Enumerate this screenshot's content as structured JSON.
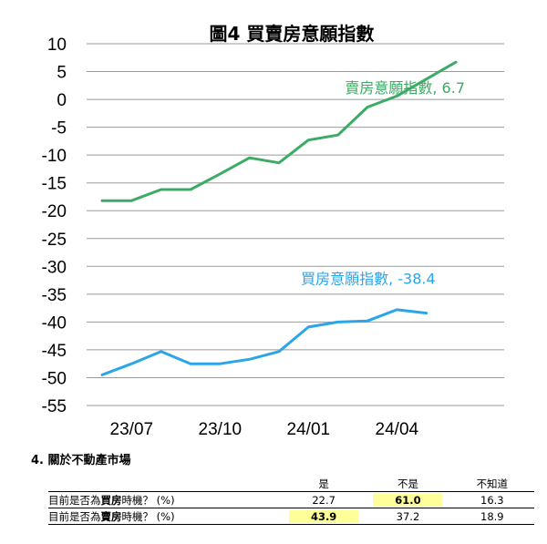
{
  "chart_data": {
    "type": "line",
    "title": "圖4 買賣房意願指數",
    "xlabel": "",
    "ylabel": "",
    "ylim": [
      -55,
      10
    ],
    "yticks": [
      10,
      5,
      0,
      -5,
      -10,
      -15,
      -20,
      -25,
      -30,
      -35,
      -40,
      -45,
      -50,
      -55
    ],
    "grid": true,
    "x": [
      "23/06",
      "23/07",
      "23/08",
      "23/09",
      "23/10",
      "23/11",
      "23/12",
      "24/01",
      "24/02",
      "24/03",
      "24/04",
      "24/05",
      "24/06"
    ],
    "xtick_labels": [
      "23/07",
      "23/10",
      "24/01",
      "24/04"
    ],
    "series": [
      {
        "name": "賣房意願指數",
        "annotation": "賣房意願指數, 6.7",
        "color": "#3cab64",
        "values": [
          -18.2,
          -18.2,
          -16.2,
          -16.2,
          -13.4,
          -10.5,
          -11.4,
          -7.3,
          -6.4,
          -1.4,
          0.6,
          null,
          6.7
        ]
      },
      {
        "name": "買房意願指數",
        "annotation": "買房意願指數, -38.4",
        "color": "#2aa6e8",
        "values": [
          -49.5,
          -47.5,
          -45.3,
          -47.5,
          -47.5,
          -46.7,
          -45.3,
          -40.9,
          -40.0,
          -39.8,
          -37.8,
          -38.4,
          null
        ]
      }
    ]
  },
  "survey": {
    "section_title": "4. 關於不動產市場",
    "headers": [
      "是",
      "不是",
      "不知道"
    ],
    "rows": [
      {
        "q_pre": "目前是否為",
        "q_bold": "買房",
        "q_post": "時機？ (%)",
        "values": [
          "22.7",
          "61.0",
          "16.3"
        ],
        "highlight": 1
      },
      {
        "q_pre": "目前是否為",
        "q_bold": "賣房",
        "q_post": "時機？ (%)",
        "values": [
          "43.9",
          "37.2",
          "18.9"
        ],
        "highlight": 0
      }
    ],
    "highlight_color": "#ffff99"
  }
}
